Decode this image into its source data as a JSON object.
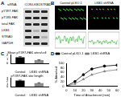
{
  "figure_labels": [
    "A",
    "B",
    "C",
    "D"
  ],
  "blot": {
    "lane_title": "siRNA",
    "lanes": [
      "CON",
      "LKB1",
      "STRAD"
    ],
    "rows": [
      "pY397-FAK",
      "pT183-FAK",
      "total FAK",
      "LKB1",
      "STRAD",
      "GAPDH"
    ]
  },
  "images": {
    "titles": [
      "Control pLKO.1",
      "LKB1 shRNA"
    ]
  },
  "chart_data": [
    {
      "type": "bar",
      "title": "Mean pY397-FAK sites/cell",
      "categories": [
        "Control",
        "LKB1 shRNA"
      ],
      "values": [
        1.5,
        0.8
      ],
      "errors": [
        0.15,
        0.1
      ],
      "colors": [
        "#000000",
        "#8c8c8c"
      ],
      "ylim": [
        0,
        2
      ],
      "yticks": [
        0,
        1,
        2
      ],
      "grid": false
    },
    {
      "type": "bar",
      "title": "pY397-FAK site length",
      "categories": [
        "Control",
        "LKB1 shRNA"
      ],
      "values": [
        2.2,
        1.3
      ],
      "errors": [
        0.2,
        0.15
      ],
      "colors": [
        "#000000",
        "#8c8c8c"
      ],
      "ylim": [
        0,
        3
      ],
      "yticks": [
        0,
        1,
        2,
        3
      ],
      "grid": false
    },
    {
      "type": "line",
      "x_label": "Time of Attachment (min)",
      "y_label": "% Attached",
      "x": [
        0,
        10,
        20,
        30,
        45,
        60
      ],
      "series": [
        {
          "name": "Control pLKO.1",
          "color": "#000000",
          "marker": "circle",
          "values": [
            0,
            20,
            50,
            75,
            88,
            92
          ]
        },
        {
          "name": "LKB1 shRNA",
          "color": "#7f7f7f",
          "marker": "triangle",
          "values": [
            0,
            10,
            30,
            50,
            65,
            72
          ]
        }
      ],
      "xlim": [
        0,
        60
      ],
      "xticks": [
        0,
        10,
        20,
        30,
        40,
        50,
        60
      ],
      "ylim": [
        0,
        100
      ],
      "yticks": [
        0,
        20,
        40,
        60,
        80,
        100
      ],
      "grid": false,
      "legend": "top-left"
    }
  ]
}
